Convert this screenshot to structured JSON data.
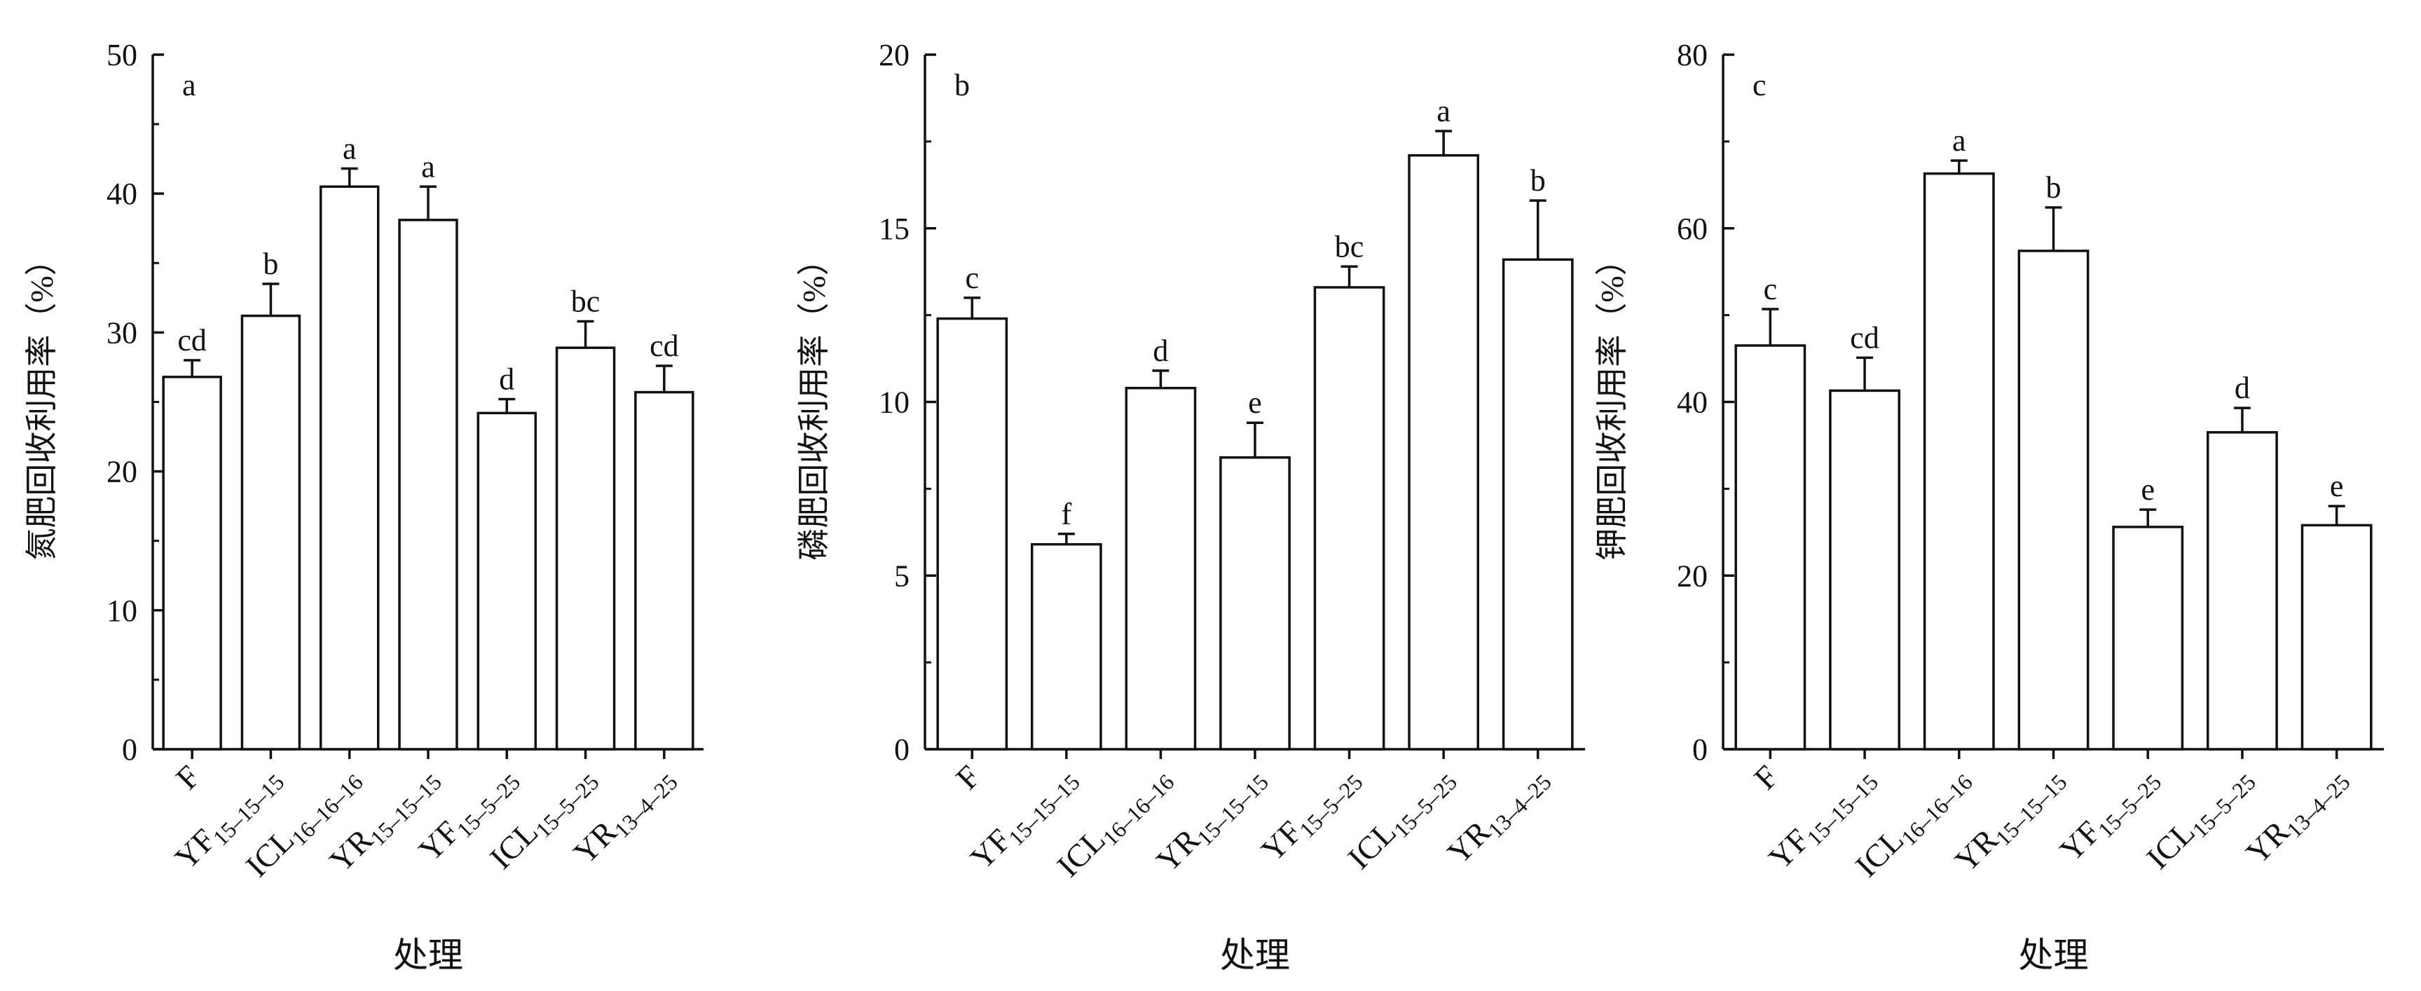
{
  "x_label": "处理",
  "categories": [
    {
      "base": "F",
      "sub": ""
    },
    {
      "base": "YF",
      "sub": "15–15–15"
    },
    {
      "base": "ICL",
      "sub": "16–16–16"
    },
    {
      "base": "YR",
      "sub": "15–15–15"
    },
    {
      "base": "YF",
      "sub": "15–5–25"
    },
    {
      "base": "ICL",
      "sub": "15–5–25"
    },
    {
      "base": "YR",
      "sub": "13–4–25"
    }
  ],
  "chart_data": [
    {
      "type": "bar",
      "panel_label": "a",
      "ylabel": "氮肥回收利用率（%）",
      "xlabel": "处理",
      "ylim": [
        0,
        50
      ],
      "yticks": [
        0,
        10,
        20,
        30,
        40,
        50
      ],
      "categories": [
        "F",
        "YF15–15–15",
        "ICL16–16–16",
        "YR15–15–15",
        "YF15–5–25",
        "ICL15–5–25",
        "YR13–4–25"
      ],
      "values": [
        26.8,
        31.2,
        40.5,
        38.1,
        24.2,
        28.9,
        25.7
      ],
      "errors": [
        1.2,
        2.3,
        1.3,
        2.4,
        1.0,
        1.9,
        1.9
      ],
      "sig_labels": [
        "cd",
        "b",
        "a",
        "a",
        "d",
        "bc",
        "cd"
      ]
    },
    {
      "type": "bar",
      "panel_label": "b",
      "ylabel": "磷肥回收利用率（%）",
      "xlabel": "处理",
      "ylim": [
        0,
        20
      ],
      "yticks": [
        0,
        5,
        10,
        15,
        20
      ],
      "categories": [
        "F",
        "YF15–15–15",
        "ICL16–16–16",
        "YR15–15–15",
        "YF15–5–25",
        "ICL15–5–25",
        "YR13–4–25"
      ],
      "values": [
        12.4,
        5.9,
        10.4,
        8.4,
        13.3,
        17.1,
        14.1
      ],
      "errors": [
        0.6,
        0.3,
        0.5,
        1.0,
        0.6,
        0.7,
        1.7
      ],
      "sig_labels": [
        "c",
        "f",
        "d",
        "e",
        "bc",
        "a",
        "b"
      ]
    },
    {
      "type": "bar",
      "panel_label": "c",
      "ylabel": "钾肥回收利用率（%）",
      "xlabel": "处理",
      "ylim": [
        0,
        80
      ],
      "yticks": [
        0,
        20,
        40,
        60,
        80
      ],
      "categories": [
        "F",
        "YF15–15–15",
        "ICL16–16–16",
        "YR15–15–15",
        "YF15–5–25",
        "ICL15–5–25",
        "YR13–4–25"
      ],
      "values": [
        46.5,
        41.3,
        66.3,
        57.4,
        25.6,
        36.5,
        25.8
      ],
      "errors": [
        4.2,
        3.8,
        1.5,
        5.0,
        2.0,
        2.8,
        2.2
      ],
      "sig_labels": [
        "c",
        "cd",
        "a",
        "b",
        "e",
        "d",
        "e"
      ]
    }
  ]
}
